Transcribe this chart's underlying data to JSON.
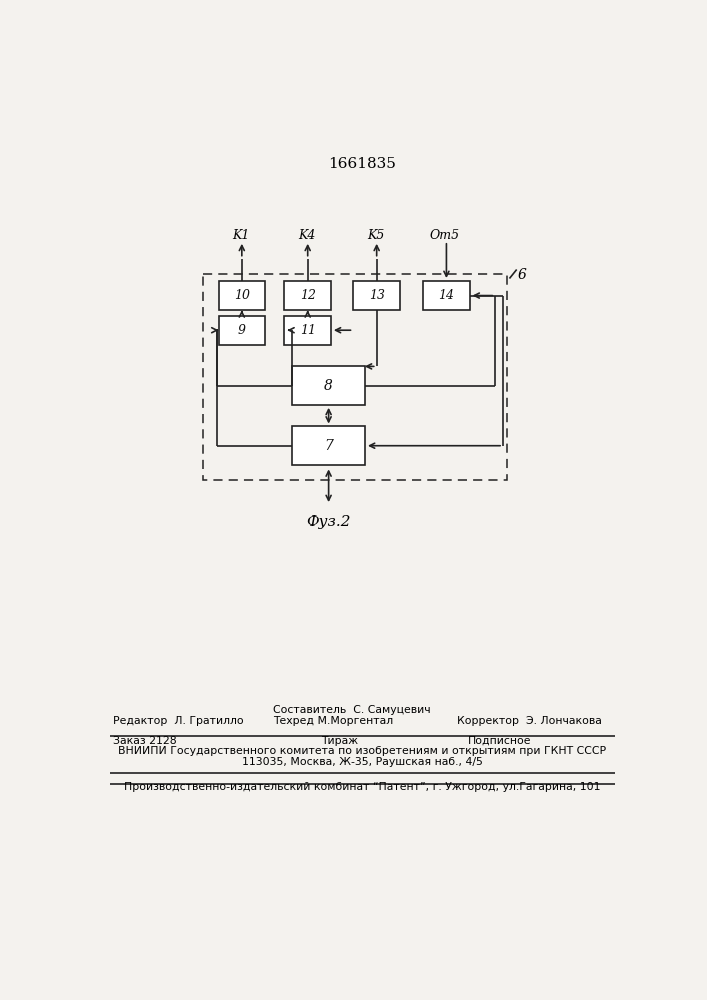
{
  "bg": "#f4f2ee",
  "lc": "#222222",
  "title": "1661835",
  "fig_label": "Фуз.2",
  "label_6": "6",
  "K1": "K1",
  "K4": "K4",
  "K5": "K5",
  "Ot5": "Om5",
  "footer_editor": "Редактор  Л. Гратилло",
  "footer_composer": "Составитель  С. Самуцевич",
  "footer_techred": "Техред М.Моргентал",
  "footer_corrector": "Корректор  Э. Лончакова",
  "footer_order": "Заказ 2128",
  "footer_tirazh": "Тираж",
  "footer_podpisnoe": "Подписное",
  "footer_vniipи": "ВНИИПИ Государственного комитета по изобретениям и открытиям при ГКНТ СССР",
  "footer_address": "113035, Москва, Ж-35, Раушская наб., 4/5",
  "footer_publisher": "Производственно-издательский комбинат “Патент”, г. Ужгород, ул.Гагарина, 101"
}
